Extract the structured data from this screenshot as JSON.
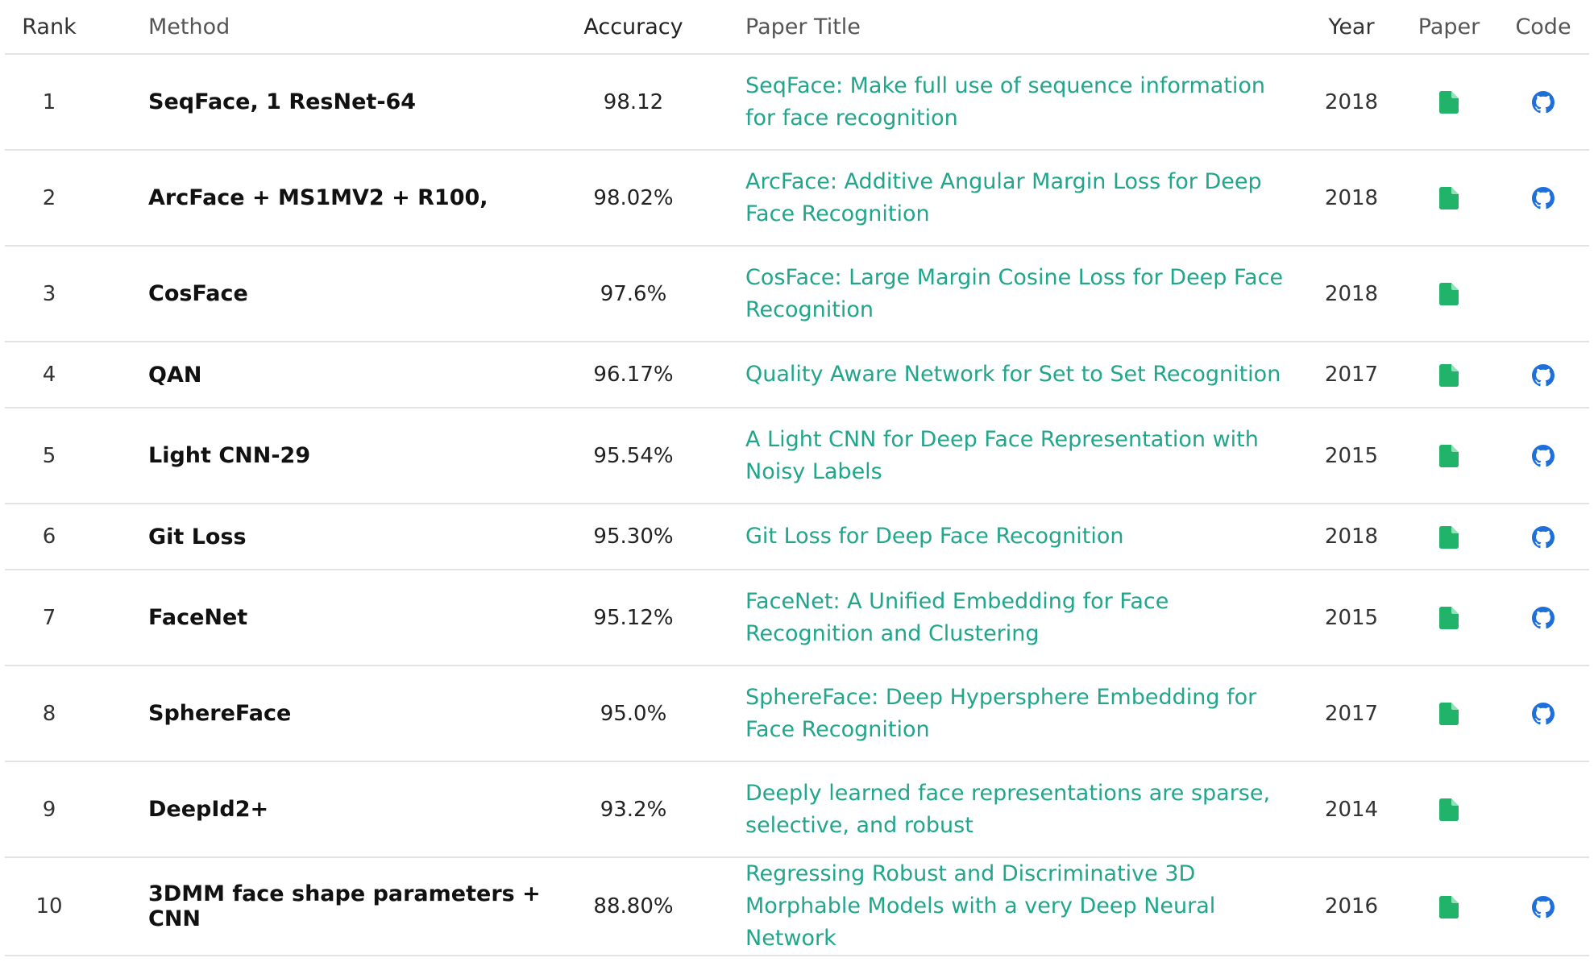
{
  "columns": {
    "rank": "Rank",
    "method": "Method",
    "accuracy": "Accuracy",
    "title": "Paper Title",
    "year": "Year",
    "paper": "Paper",
    "code": "Code"
  },
  "colors": {
    "link": "#21a58b",
    "paper_icon": "#21b36a",
    "code_icon": "#1e6fd9"
  },
  "icons": {
    "paper": "document-icon",
    "code": "github-icon"
  },
  "rows": [
    {
      "rank": "1",
      "method": "SeqFace, 1 ResNet-64",
      "accuracy": "98.12",
      "title": "SeqFace: Make full use of sequence information for face recognition",
      "year": "2018",
      "has_paper": true,
      "has_code": true
    },
    {
      "rank": "2",
      "method": "ArcFace + MS1MV2 + R100,",
      "accuracy": "98.02%",
      "title": "ArcFace: Additive Angular Margin Loss for Deep Face Recognition",
      "year": "2018",
      "has_paper": true,
      "has_code": true
    },
    {
      "rank": "3",
      "method": "CosFace",
      "accuracy": "97.6%",
      "title": "CosFace: Large Margin Cosine Loss for Deep Face Recognition",
      "year": "2018",
      "has_paper": true,
      "has_code": false
    },
    {
      "rank": "4",
      "method": "QAN",
      "accuracy": "96.17%",
      "title": "Quality Aware Network for Set to Set Recognition",
      "year": "2017",
      "has_paper": true,
      "has_code": true
    },
    {
      "rank": "5",
      "method": "Light CNN-29",
      "accuracy": "95.54%",
      "title": "A Light CNN for Deep Face Representation with Noisy Labels",
      "year": "2015",
      "has_paper": true,
      "has_code": true
    },
    {
      "rank": "6",
      "method": "Git Loss",
      "accuracy": "95.30%",
      "title": "Git Loss for Deep Face Recognition",
      "year": "2018",
      "has_paper": true,
      "has_code": true
    },
    {
      "rank": "7",
      "method": "FaceNet",
      "accuracy": "95.12%",
      "title": "FaceNet: A Unified Embedding for Face Recognition and Clustering",
      "year": "2015",
      "has_paper": true,
      "has_code": true
    },
    {
      "rank": "8",
      "method": "SphereFace",
      "accuracy": "95.0%",
      "title": "SphereFace: Deep Hypersphere Embedding for Face Recognition",
      "year": "2017",
      "has_paper": true,
      "has_code": true
    },
    {
      "rank": "9",
      "method": "DeepId2+",
      "accuracy": "93.2%",
      "title": "Deeply learned face representations are sparse, selective, and robust",
      "year": "2014",
      "has_paper": true,
      "has_code": false
    },
    {
      "rank": "10",
      "method": "3DMM face shape parameters + CNN",
      "accuracy": "88.80%",
      "title": "Regressing Robust and Discriminative 3D Morphable Models with a very Deep Neural Network",
      "year": "2016",
      "has_paper": true,
      "has_code": true
    }
  ]
}
